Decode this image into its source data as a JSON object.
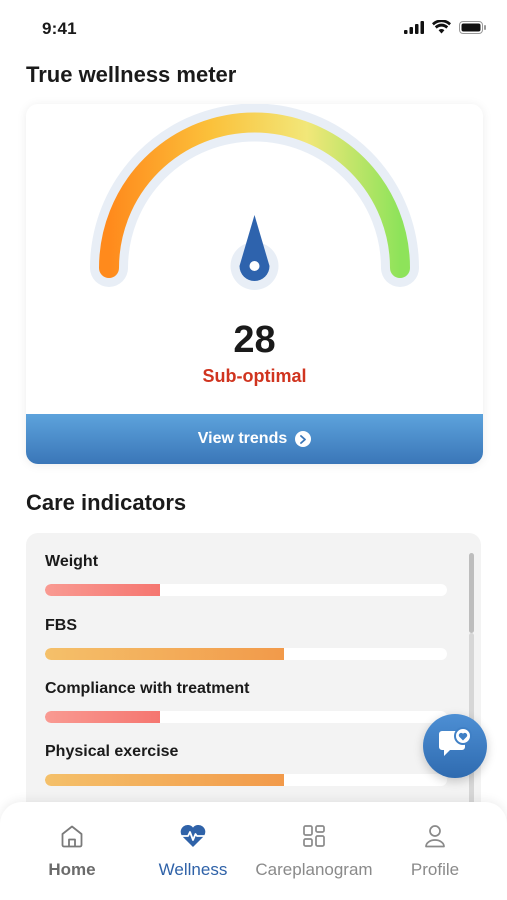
{
  "status_bar": {
    "time": "9:41",
    "icons": [
      "cellular-signal-icon",
      "wifi-icon",
      "battery-icon"
    ]
  },
  "meter": {
    "title": "True wellness meter",
    "value": "28",
    "status": "Sub-optimal",
    "score_fraction": 0.28,
    "status_color": "#d0341f",
    "gradient_colors": [
      "#ff8a1c",
      "#fbc13b",
      "#f2e779",
      "#8ee35a"
    ],
    "view_trends_label": "View trends"
  },
  "care": {
    "title": "Care indicators",
    "items": [
      {
        "label": "Weight",
        "fill": 0.287,
        "color": "salmon"
      },
      {
        "label": "FBS",
        "fill": 0.595,
        "color": "orange"
      },
      {
        "label": "Compliance with treatment",
        "fill": 0.287,
        "color": "salmon"
      },
      {
        "label": "Physical exercise",
        "fill": 0.595,
        "color": "orange"
      }
    ]
  },
  "nav": {
    "items": [
      {
        "label": "Home",
        "icon": "home-icon"
      },
      {
        "label": "Wellness",
        "icon": "heartbeat-icon"
      },
      {
        "label": "Careplanogram",
        "icon": "grid-icon"
      },
      {
        "label": "Profile",
        "icon": "user-icon"
      }
    ],
    "active": "Wellness"
  },
  "colors": {
    "accent": "#2f62a8",
    "button_top": "#5da3dc",
    "button_bottom": "#3a76b8",
    "bar_salmon": "#f57670",
    "bar_orange": "#f29a4a"
  }
}
